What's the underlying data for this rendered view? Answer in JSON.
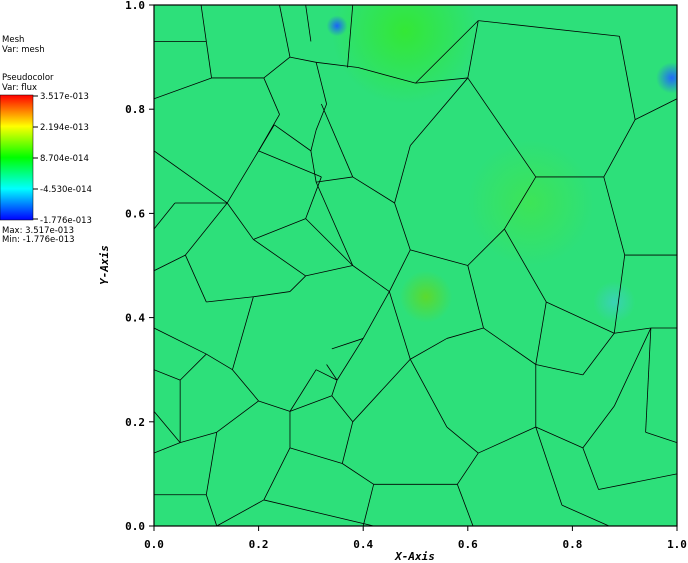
{
  "chart_data": {
    "type": "heatmap",
    "title": "",
    "xlabel": "X-Axis",
    "ylabel": "Y-Axis",
    "xlim": [
      0.0,
      1.0
    ],
    "ylim": [
      0.0,
      1.0
    ],
    "x_ticks": [
      "0.0",
      "0.2",
      "0.4",
      "0.6",
      "0.8",
      "1.0"
    ],
    "y_ticks": [
      "0.0",
      "0.2",
      "0.4",
      "0.6",
      "0.8",
      "1.0"
    ],
    "plots": [
      {
        "name": "Mesh",
        "var": "Var: mesh"
      },
      {
        "name": "Pseudocolor",
        "var": "Var: flux"
      }
    ],
    "colorbar": {
      "labels": [
        "3.517e-013",
        "2.194e-013",
        "8.704e-014",
        "-4.530e-014",
        "-1.776e-013"
      ],
      "colors": [
        "#ff0000",
        "#ffff00",
        "#00ff00",
        "#00ffff",
        "#0000ff"
      ],
      "max_label": "Max:  3.517e-013",
      "min_label": "Min: -1.776e-013"
    },
    "field": {
      "base_color": "#2de07a",
      "highlights": [
        {
          "x": 0.48,
          "y": 0.95,
          "r": 0.14,
          "color": "#34e832"
        },
        {
          "x": 0.72,
          "y": 0.62,
          "r": 0.12,
          "color": "#3ee455"
        },
        {
          "x": 0.35,
          "y": 0.96,
          "r": 0.02,
          "color": "#1a5dff"
        },
        {
          "x": 0.99,
          "y": 0.86,
          "r": 0.03,
          "color": "#1f64ff"
        },
        {
          "x": 0.88,
          "y": 0.43,
          "r": 0.04,
          "color": "#3ad1b8"
        },
        {
          "x": 0.52,
          "y": 0.44,
          "r": 0.05,
          "color": "#5ed92a"
        }
      ]
    },
    "mesh_edges": [
      [
        0.09,
        1.0,
        0.1,
        0.93
      ],
      [
        0.0,
        0.93,
        0.1,
        0.93
      ],
      [
        0.1,
        0.93,
        0.11,
        0.86
      ],
      [
        0.11,
        0.86,
        0.0,
        0.82
      ],
      [
        0.11,
        0.86,
        0.21,
        0.86
      ],
      [
        0.21,
        0.86,
        0.24,
        0.79
      ],
      [
        0.24,
        0.79,
        0.2,
        0.72
      ],
      [
        0.2,
        0.72,
        0.14,
        0.62
      ],
      [
        0.0,
        0.72,
        0.14,
        0.62
      ],
      [
        0.14,
        0.62,
        0.04,
        0.62
      ],
      [
        0.0,
        0.57,
        0.04,
        0.62
      ],
      [
        0.14,
        0.62,
        0.06,
        0.52
      ],
      [
        0.06,
        0.52,
        0.0,
        0.49
      ],
      [
        0.06,
        0.52,
        0.1,
        0.43
      ],
      [
        0.1,
        0.43,
        0.19,
        0.44
      ],
      [
        0.19,
        0.44,
        0.26,
        0.45
      ],
      [
        0.26,
        0.45,
        0.29,
        0.48
      ],
      [
        0.29,
        0.48,
        0.19,
        0.55
      ],
      [
        0.19,
        0.55,
        0.14,
        0.62
      ],
      [
        0.2,
        0.72,
        0.32,
        0.67
      ],
      [
        0.32,
        0.67,
        0.29,
        0.59
      ],
      [
        0.29,
        0.59,
        0.19,
        0.55
      ],
      [
        0.29,
        0.59,
        0.38,
        0.5
      ],
      [
        0.29,
        0.48,
        0.38,
        0.5
      ],
      [
        0.38,
        0.5,
        0.45,
        0.45
      ],
      [
        0.45,
        0.45,
        0.4,
        0.36
      ],
      [
        0.4,
        0.36,
        0.35,
        0.28
      ],
      [
        0.35,
        0.28,
        0.33,
        0.31
      ],
      [
        0.38,
        0.5,
        0.31,
        0.66
      ],
      [
        0.31,
        0.66,
        0.3,
        0.72
      ],
      [
        0.3,
        0.72,
        0.23,
        0.77
      ],
      [
        0.23,
        0.77,
        0.2,
        0.72
      ],
      [
        0.21,
        0.86,
        0.26,
        0.9
      ],
      [
        0.26,
        0.9,
        0.31,
        0.89
      ],
      [
        0.31,
        0.89,
        0.33,
        0.81
      ],
      [
        0.33,
        0.81,
        0.31,
        0.76
      ],
      [
        0.31,
        0.76,
        0.3,
        0.72
      ],
      [
        0.31,
        0.89,
        0.39,
        0.88
      ],
      [
        0.39,
        0.88,
        0.5,
        0.85
      ],
      [
        0.5,
        0.85,
        0.6,
        0.86
      ],
      [
        0.6,
        0.86,
        0.62,
        0.97
      ],
      [
        0.62,
        0.97,
        0.89,
        0.94
      ],
      [
        0.89,
        0.94,
        0.92,
        0.78
      ],
      [
        0.92,
        0.78,
        0.86,
        0.67
      ],
      [
        0.86,
        0.67,
        0.9,
        0.52
      ],
      [
        0.9,
        0.52,
        1.0,
        0.52
      ],
      [
        0.92,
        0.78,
        1.0,
        0.82
      ],
      [
        0.26,
        0.9,
        0.24,
        1.0
      ],
      [
        0.3,
        0.93,
        0.29,
        1.0
      ],
      [
        0.37,
        0.88,
        0.38,
        1.0
      ],
      [
        0.5,
        0.85,
        0.62,
        0.97
      ],
      [
        0.6,
        0.86,
        0.73,
        0.67
      ],
      [
        0.73,
        0.67,
        0.86,
        0.67
      ],
      [
        0.73,
        0.67,
        0.67,
        0.57
      ],
      [
        0.67,
        0.57,
        0.6,
        0.5
      ],
      [
        0.6,
        0.5,
        0.49,
        0.53
      ],
      [
        0.49,
        0.53,
        0.45,
        0.45
      ],
      [
        0.49,
        0.53,
        0.46,
        0.62
      ],
      [
        0.46,
        0.62,
        0.49,
        0.73
      ],
      [
        0.49,
        0.73,
        0.6,
        0.86
      ],
      [
        0.46,
        0.62,
        0.38,
        0.67
      ],
      [
        0.38,
        0.67,
        0.31,
        0.66
      ],
      [
        0.38,
        0.67,
        0.32,
        0.81
      ],
      [
        0.67,
        0.57,
        0.75,
        0.43
      ],
      [
        0.75,
        0.43,
        0.88,
        0.37
      ],
      [
        0.88,
        0.37,
        0.9,
        0.52
      ],
      [
        0.6,
        0.5,
        0.63,
        0.38
      ],
      [
        0.63,
        0.38,
        0.56,
        0.36
      ],
      [
        0.56,
        0.36,
        0.49,
        0.32
      ],
      [
        0.49,
        0.32,
        0.45,
        0.45
      ],
      [
        0.63,
        0.38,
        0.73,
        0.31
      ],
      [
        0.73,
        0.31,
        0.75,
        0.43
      ],
      [
        0.73,
        0.31,
        0.82,
        0.29
      ],
      [
        0.82,
        0.29,
        0.88,
        0.37
      ],
      [
        0.88,
        0.37,
        0.95,
        0.38
      ],
      [
        0.95,
        0.38,
        1.0,
        0.38
      ],
      [
        0.88,
        0.23,
        0.95,
        0.38
      ],
      [
        0.0,
        0.38,
        0.1,
        0.33
      ],
      [
        0.1,
        0.33,
        0.15,
        0.3
      ],
      [
        0.15,
        0.3,
        0.19,
        0.44
      ],
      [
        0.15,
        0.3,
        0.2,
        0.24
      ],
      [
        0.2,
        0.24,
        0.26,
        0.22
      ],
      [
        0.26,
        0.22,
        0.31,
        0.3
      ],
      [
        0.31,
        0.3,
        0.35,
        0.28
      ],
      [
        0.26,
        0.22,
        0.26,
        0.15
      ],
      [
        0.26,
        0.15,
        0.36,
        0.12
      ],
      [
        0.36,
        0.12,
        0.42,
        0.08
      ],
      [
        0.42,
        0.08,
        0.58,
        0.08
      ],
      [
        0.58,
        0.08,
        0.62,
        0.14
      ],
      [
        0.62,
        0.14,
        0.73,
        0.19
      ],
      [
        0.73,
        0.19,
        0.82,
        0.15
      ],
      [
        0.82,
        0.15,
        0.88,
        0.23
      ],
      [
        0.73,
        0.19,
        0.73,
        0.31
      ],
      [
        0.62,
        0.14,
        0.56,
        0.19
      ],
      [
        0.56,
        0.19,
        0.49,
        0.32
      ],
      [
        0.2,
        0.24,
        0.12,
        0.18
      ],
      [
        0.12,
        0.18,
        0.05,
        0.16
      ],
      [
        0.05,
        0.16,
        0.0,
        0.22
      ],
      [
        0.12,
        0.18,
        0.1,
        0.06
      ],
      [
        0.1,
        0.06,
        0.0,
        0.06
      ],
      [
        0.1,
        0.06,
        0.12,
        0.0
      ],
      [
        0.26,
        0.15,
        0.21,
        0.05
      ],
      [
        0.21,
        0.05,
        0.12,
        0.0
      ],
      [
        0.21,
        0.05,
        0.42,
        0.0
      ],
      [
        0.42,
        0.08,
        0.4,
        0.0
      ],
      [
        0.58,
        0.08,
        0.61,
        0.0
      ],
      [
        0.73,
        0.19,
        0.78,
        0.04
      ],
      [
        0.78,
        0.04,
        0.87,
        0.0
      ],
      [
        0.82,
        0.15,
        0.85,
        0.07
      ],
      [
        0.85,
        0.07,
        1.0,
        0.1
      ],
      [
        0.0,
        0.14,
        0.05,
        0.16
      ],
      [
        0.0,
        0.3,
        0.05,
        0.28
      ],
      [
        0.05,
        0.28,
        0.1,
        0.33
      ],
      [
        0.05,
        0.28,
        0.05,
        0.16
      ],
      [
        0.34,
        0.34,
        0.4,
        0.36
      ],
      [
        0.26,
        0.22,
        0.34,
        0.25
      ],
      [
        0.34,
        0.25,
        0.35,
        0.28
      ],
      [
        0.38,
        0.2,
        0.36,
        0.12
      ],
      [
        0.34,
        0.25,
        0.38,
        0.2
      ],
      [
        0.38,
        0.2,
        0.49,
        0.32
      ],
      [
        0.95,
        0.38,
        0.94,
        0.18
      ],
      [
        0.94,
        0.18,
        1.0,
        0.16
      ]
    ]
  }
}
